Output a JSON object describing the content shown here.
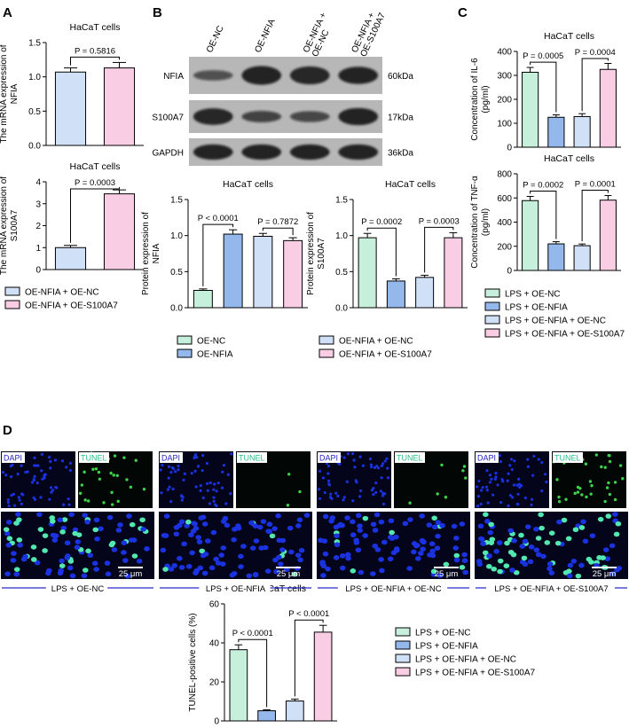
{
  "panel_letters": {
    "a": "A",
    "b": "B",
    "c": "C",
    "d": "D"
  },
  "colors": {
    "ncA": "#cfe0f7",
    "s100A": "#f9cde3",
    "nc": "#c7f0dc",
    "nfia": "#94b8ec",
    "nfiaNc": "#cfe0f7",
    "s100": "#f9cde3",
    "cellBlue": "#1a32e0",
    "tunelGreen": "#52e8b0",
    "panelDark": "#04041a",
    "labelBlue": "#2525c0"
  },
  "blot": {
    "columns": [
      "OE-NC",
      "OE-NFIA",
      "OE-NFIA + OE-NC",
      "OE-NFIA + OE-S100A7"
    ],
    "rows": [
      {
        "name": "NFIA",
        "kda": "60kDa",
        "intensity": [
          0.35,
          0.95,
          0.9,
          0.85
        ]
      },
      {
        "name": "S100A7",
        "kda": "17kDa",
        "intensity": [
          0.9,
          0.5,
          0.45,
          0.95
        ]
      },
      {
        "name": "GAPDH",
        "kda": "36kDa",
        "intensity": [
          0.95,
          0.95,
          0.95,
          0.95
        ]
      }
    ]
  },
  "legends": {
    "A": [
      "OE-NFIA + OE-NC",
      "OE-NFIA + OE-S100A7"
    ],
    "B": [
      "OE-NC",
      "OE-NFIA + OE-NC",
      "OE-NFIA",
      "OE-NFIA + OE-S100A7"
    ],
    "C": [
      "LPS + OE-NC",
      "LPS + OE-NFIA",
      "LPS + OE-NFIA + OE-NC",
      "LPS + OE-NFIA + OE-S100A7"
    ],
    "D": [
      "LPS + OE-NC",
      "LPS + OE-NFIA",
      "LPS + OE-NFIA + OE-NC",
      "LPS + OE-NFIA + OE-S100A7"
    ]
  },
  "micro": {
    "dapi_label": "DAPI",
    "tunel_label": "TUNEL",
    "scale": "25 μm",
    "groups": [
      "LPS + OE-NC",
      "LPS + OE-NFIA",
      "LPS + OE-NFIA + OE-NC",
      "LPS + OE-NFIA + OE-S100A7"
    ],
    "tunel_fraction": [
      0.36,
      0.05,
      0.1,
      0.45
    ]
  },
  "chart_data": [
    {
      "id": "a1",
      "type": "bar",
      "title": "HaCaT cells",
      "ylabel": "The mRNA expression of NFIA",
      "ylim": [
        0,
        1.5
      ],
      "yticks": [
        0.0,
        0.5,
        1.0,
        1.5
      ],
      "yticklabels": [
        "0.0",
        "0.5",
        "1.0",
        "1.5"
      ],
      "categories": [
        "OE-NFIA + OE-NC",
        "OE-NFIA + OE-S100A7"
      ],
      "values": [
        1.07,
        1.13
      ],
      "errors": [
        0.06,
        0.08
      ],
      "comparisons": [
        {
          "from": 0,
          "to": 1,
          "label": "P = 0.5816"
        }
      ]
    },
    {
      "id": "a2",
      "type": "bar",
      "title": "HaCaT cells",
      "ylabel": "The mRNA expression of S100A7",
      "ylim": [
        0,
        4
      ],
      "yticks": [
        0,
        1,
        2,
        3,
        4
      ],
      "yticklabels": [
        "0",
        "1",
        "2",
        "3",
        "4"
      ],
      "categories": [
        "OE-NFIA + OE-NC",
        "OE-NFIA + OE-S100A7"
      ],
      "values": [
        1.0,
        3.45
      ],
      "errors": [
        0.1,
        0.18
      ],
      "comparisons": [
        {
          "from": 0,
          "to": 1,
          "label": "P = 0.0003"
        }
      ]
    },
    {
      "id": "b1",
      "type": "bar",
      "title": "HaCaT cells",
      "ylabel": "Protein expression of NFIA",
      "ylim": [
        0,
        1.5
      ],
      "yticks": [
        0.0,
        0.5,
        1.0,
        1.5
      ],
      "yticklabels": [
        "0.0",
        "0.5",
        "1.0",
        "1.5"
      ],
      "categories": [
        "OE-NC",
        "OE-NFIA",
        "OE-NFIA + OE-NC",
        "OE-NFIA + OE-S100A7"
      ],
      "values": [
        0.24,
        1.02,
        0.99,
        0.93
      ],
      "errors": [
        0.02,
        0.06,
        0.04,
        0.04
      ],
      "comparisons": [
        {
          "from": 0,
          "to": 1,
          "label": "P < 0.0001"
        },
        {
          "from": 2,
          "to": 3,
          "label": "P = 0.7872"
        }
      ]
    },
    {
      "id": "b2",
      "type": "bar",
      "title": "HaCaT cells",
      "ylabel": "Protein expression of S100A7",
      "ylim": [
        0,
        1.5
      ],
      "yticks": [
        0.0,
        0.5,
        1.0,
        1.5
      ],
      "yticklabels": [
        "0.0",
        "0.5",
        "1.0",
        "1.5"
      ],
      "categories": [
        "OE-NC",
        "OE-NFIA",
        "OE-NFIA + OE-NC",
        "OE-NFIA + OE-S100A7"
      ],
      "values": [
        0.97,
        0.37,
        0.42,
        0.97
      ],
      "errors": [
        0.06,
        0.03,
        0.03,
        0.07
      ],
      "comparisons": [
        {
          "from": 0,
          "to": 1,
          "label": "P = 0.0002"
        },
        {
          "from": 2,
          "to": 3,
          "label": "P = 0.0003"
        }
      ]
    },
    {
      "id": "c1",
      "type": "bar",
      "title": "HaCaT cells",
      "ylabel": "Concentration of IL-6 (pg/ml)",
      "ylim": [
        0,
        400
      ],
      "yticks": [
        0,
        100,
        200,
        300,
        400
      ],
      "yticklabels": [
        "0",
        "100",
        "200",
        "300",
        "400"
      ],
      "categories": [
        "LPS + OE-NC",
        "LPS + OE-NFIA",
        "LPS + OE-NFIA + OE-NC",
        "LPS + OE-NFIA + OE-S100A7"
      ],
      "values": [
        313,
        125,
        128,
        325
      ],
      "errors": [
        20,
        10,
        12,
        25
      ],
      "comparisons": [
        {
          "from": 0,
          "to": 1,
          "label": "P = 0.0005"
        },
        {
          "from": 2,
          "to": 3,
          "label": "P = 0.0004"
        }
      ]
    },
    {
      "id": "c2",
      "type": "bar",
      "title": "HaCaT cells",
      "ylabel": "Concentration of TNF-α (pg/ml)",
      "ylim": [
        0,
        800
      ],
      "yticks": [
        0,
        200,
        400,
        600,
        800
      ],
      "yticklabels": [
        "0",
        "200",
        "400",
        "600",
        "800"
      ],
      "categories": [
        "LPS + OE-NC",
        "LPS + OE-NFIA",
        "LPS + OE-NFIA + OE-NC",
        "LPS + OE-NFIA + OE-S100A7"
      ],
      "values": [
        578,
        220,
        205,
        582
      ],
      "errors": [
        35,
        18,
        14,
        38
      ],
      "comparisons": [
        {
          "from": 0,
          "to": 1,
          "label": "P = 0.0002"
        },
        {
          "from": 2,
          "to": 3,
          "label": "P = 0.0001"
        }
      ]
    },
    {
      "id": "d1",
      "type": "bar",
      "title": "HaCaT cells",
      "ylabel": "TUNEL-positive cells (%)",
      "ylim": [
        0,
        60
      ],
      "yticks": [
        0,
        20,
        40,
        60
      ],
      "yticklabels": [
        "0",
        "20",
        "40",
        "60"
      ],
      "categories": [
        "LPS + OE-NC",
        "LPS + OE-NFIA",
        "LPS + OE-NFIA + OE-NC",
        "LPS + OE-NFIA + OE-S100A7"
      ],
      "values": [
        36.5,
        5.2,
        10.2,
        45.5
      ],
      "errors": [
        2.5,
        0.5,
        1.0,
        3.5
      ],
      "comparisons": [
        {
          "from": 0,
          "to": 1,
          "label": "P < 0.0001"
        },
        {
          "from": 2,
          "to": 3,
          "label": "P < 0.0001"
        }
      ]
    }
  ]
}
